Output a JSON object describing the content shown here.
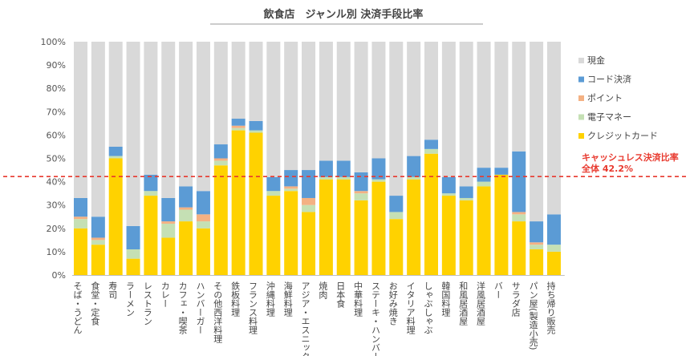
{
  "chart_data": {
    "type": "bar",
    "stacked": true,
    "title": "飲食店　ジャンル別 決済手段比率",
    "xlabel": "",
    "ylabel": "",
    "ylim": [
      0,
      100
    ],
    "yticks": [
      "0%",
      "10%",
      "20%",
      "30%",
      "40%",
      "50%",
      "60%",
      "70%",
      "80%",
      "90%",
      "100%"
    ],
    "categories": [
      "そば・うどん",
      "食堂・定食",
      "寿司",
      "ラーメン",
      "レストラン",
      "カレー",
      "カフェ・喫茶",
      "ハンバーガー",
      "その他西洋料理",
      "鉄板料理",
      "フランス料理",
      "沖縄料理",
      "海鮮料理",
      "アジア・エスニック",
      "焼肉",
      "日本食",
      "中華料理",
      "ステーキ・ハンバーグ",
      "お好み焼き",
      "イタリア料理",
      "しゃぶしゃぶ",
      "韓国料理",
      "和風居酒屋",
      "洋風居酒屋",
      "バー",
      "サラダ店",
      "パン屋(製造小売)",
      "持ち帰り販売"
    ],
    "series": [
      {
        "name": "クレジットカード",
        "color": "#FFD200",
        "values": [
          20,
          13,
          50,
          7,
          34,
          16,
          23,
          20,
          47,
          62,
          61,
          34,
          36,
          27,
          41,
          41,
          32,
          40,
          24,
          41,
          52,
          34,
          32,
          38,
          43,
          23,
          11,
          10
        ]
      },
      {
        "name": "電子マネー",
        "color": "#C5E0B4",
        "values": [
          4,
          2,
          1,
          4,
          2,
          6,
          5,
          3,
          2,
          1,
          1,
          2,
          1,
          3,
          1,
          1,
          3,
          1,
          3,
          1,
          2,
          1,
          1,
          2,
          0,
          3,
          2,
          3
        ]
      },
      {
        "name": "ポイント",
        "color": "#F4B183",
        "values": [
          1,
          1,
          0,
          0,
          0,
          1,
          1,
          3,
          1,
          1,
          0,
          0,
          1,
          3,
          0,
          0,
          1,
          0,
          0,
          0,
          0,
          0,
          0,
          0,
          0,
          1,
          1,
          0
        ]
      },
      {
        "name": "コード決済",
        "color": "#5B9BD5",
        "values": [
          8,
          9,
          4,
          10,
          7,
          10,
          9,
          10,
          6,
          3,
          4,
          6,
          7,
          12,
          7,
          7,
          8,
          9,
          7,
          9,
          4,
          7,
          5,
          6,
          3,
          26,
          9,
          13
        ]
      },
      {
        "name": "現金",
        "color": "#D9D9D9",
        "values": [
          67,
          75,
          45,
          79,
          57,
          67,
          62,
          64,
          44,
          33,
          34,
          58,
          55,
          55,
          51,
          51,
          56,
          50,
          66,
          49,
          42,
          58,
          62,
          54,
          54,
          47,
          77,
          74
        ]
      }
    ],
    "legend_order": [
      "現金",
      "コード決済",
      "ポイント",
      "電子マネー",
      "クレジットカード"
    ],
    "legend_position": "right",
    "reference_line": {
      "value": 42.2,
      "label_line1": "キャッシュレス決済比率",
      "label_line2": "全体 42.2%",
      "color": "#E8392E"
    },
    "grid": false
  }
}
